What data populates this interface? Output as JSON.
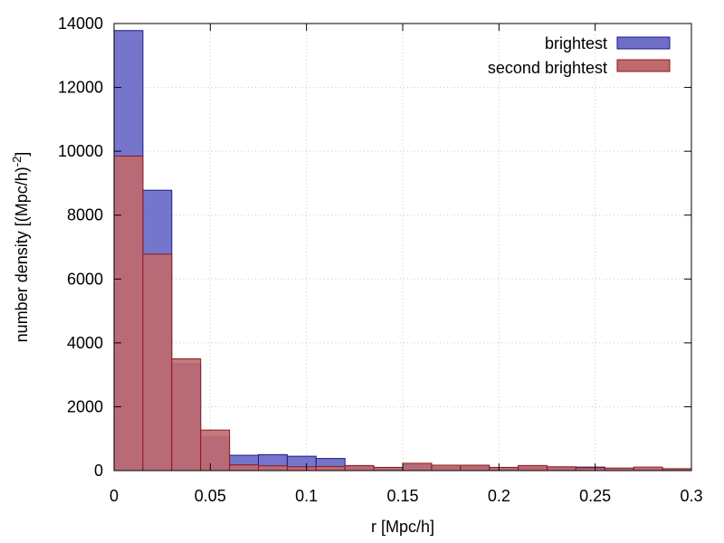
{
  "chart_data": {
    "type": "bar",
    "title": "",
    "xlabel": "r [Mpc/h]",
    "ylabel": "number density [(Mpc/h)",
    "ylabel_superscript": "-2",
    "ylabel_tail": "]",
    "xlim": [
      0,
      0.3
    ],
    "ylim": [
      0,
      14000
    ],
    "xticks": [
      "0",
      "0.05",
      "0.1",
      "0.15",
      "0.2",
      "0.25",
      "0.3"
    ],
    "yticks": [
      "0",
      "2000",
      "4000",
      "6000",
      "8000",
      "10000",
      "12000",
      "14000"
    ],
    "grid": true,
    "legend_position": "top-right",
    "bin_edges": [
      0,
      0.015,
      0.03,
      0.045,
      0.06,
      0.075,
      0.09,
      0.105,
      0.12,
      0.135,
      0.15,
      0.165,
      0.18,
      0.195,
      0.21,
      0.225,
      0.24,
      0.255,
      0.27,
      0.285,
      0.3
    ],
    "series": [
      {
        "name": "brightest",
        "color": "#6e6ec8",
        "edge_color": "#1a1a8c",
        "values": [
          13780,
          8780,
          3340,
          1050,
          480,
          500,
          450,
          380,
          130,
          100,
          190,
          110,
          120,
          100,
          110,
          90,
          110,
          60,
          50,
          30
        ]
      },
      {
        "name": "second brightest",
        "color": "#c06a6e",
        "edge_color": "#8b1a1a",
        "values": [
          9850,
          6780,
          3500,
          1270,
          180,
          150,
          120,
          130,
          160,
          100,
          230,
          170,
          170,
          100,
          160,
          120,
          90,
          80,
          110,
          60
        ]
      }
    ]
  }
}
